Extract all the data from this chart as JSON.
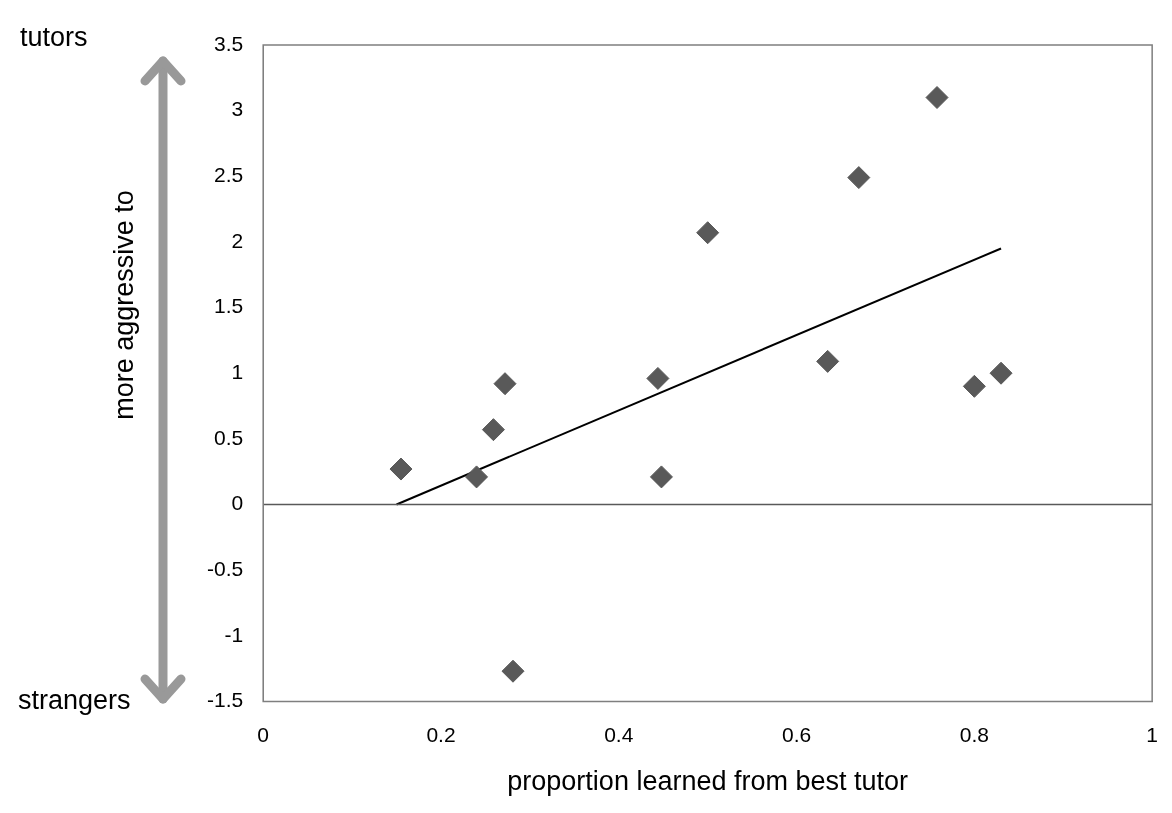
{
  "chart_data": {
    "type": "scatter",
    "xlabel": "proportion learned from best tutor",
    "ylabel": "more aggressive to",
    "annotations": [
      "tutors",
      "strangers"
    ],
    "xlim": [
      0,
      1
    ],
    "xticks": [
      0,
      0.2,
      0.4,
      0.6,
      0.8,
      1
    ],
    "ylim": [
      -1.5,
      3.5
    ],
    "yticks": [
      -1.5,
      -1,
      -0.5,
      0,
      0.5,
      1,
      1.5,
      2,
      2.5,
      3,
      3.5
    ],
    "grid": false,
    "legend": false,
    "ref_lines": [
      {
        "axis": "y",
        "value": 0,
        "color": "#595959"
      }
    ],
    "series": [
      {
        "type": "scatter",
        "marker": "diamond",
        "color": "#595959",
        "x": [
          0.155,
          0.24,
          0.259,
          0.272,
          0.281,
          0.444,
          0.448,
          0.5,
          0.635,
          0.67,
          0.758,
          0.8,
          0.83
        ],
        "values": [
          0.27,
          0.21,
          0.57,
          0.92,
          -1.27,
          0.96,
          0.21,
          2.07,
          1.09,
          2.49,
          3.1,
          0.9,
          1.0
        ]
      },
      {
        "type": "line",
        "marker": "none",
        "color": "#000000",
        "x": [
          0.15,
          0.83
        ],
        "values": [
          0.0,
          1.95
        ]
      }
    ]
  }
}
